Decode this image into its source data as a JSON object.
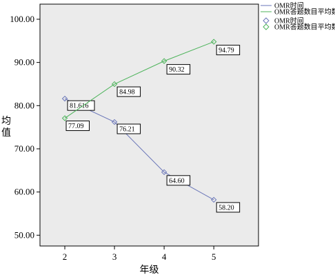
{
  "chart_data": {
    "type": "line",
    "x": [
      2,
      3,
      4,
      5
    ],
    "x_tick_labels": [
      "2",
      "3",
      "4",
      "5"
    ],
    "xlabel": "年级",
    "ylabel": "均值",
    "ylim": [
      50,
      100
    ],
    "y_tick_labels": [
      "50.00",
      "60.00",
      "70.00",
      "80.00",
      "90.00",
      "100.00"
    ],
    "y_ticks": [
      50,
      60,
      70,
      80,
      90,
      100
    ],
    "grid": false,
    "legend_position": "top-right",
    "colors": {
      "plot_bg": "#ebebeb"
    },
    "series": [
      {
        "name": "OMR时间",
        "values": [
          81.616,
          76.21,
          64.6,
          58.2
        ],
        "labels": [
          "81.616",
          "76.21",
          "64.60",
          "58.20"
        ],
        "color": "#6a76b8"
      },
      {
        "name": "OMR答题数目平均数",
        "values": [
          77.09,
          84.98,
          90.32,
          94.79
        ],
        "labels": [
          "77.09",
          "84.98",
          "90.32",
          "94.79"
        ],
        "color": "#4cb35a"
      }
    ]
  }
}
